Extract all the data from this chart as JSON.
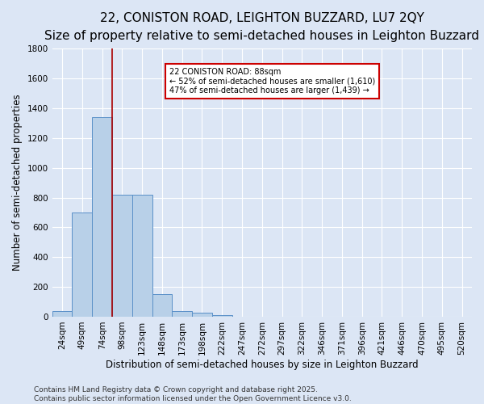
{
  "title": "22, CONISTON ROAD, LEIGHTON BUZZARD, LU7 2QY",
  "subtitle": "Size of property relative to semi-detached houses in Leighton Buzzard",
  "xlabel": "Distribution of semi-detached houses by size in Leighton Buzzard",
  "ylabel": "Number of semi-detached properties",
  "footnote": "Contains HM Land Registry data © Crown copyright and database right 2025.\nContains public sector information licensed under the Open Government Licence v3.0.",
  "categories": [
    "24sqm",
    "49sqm",
    "74sqm",
    "98sqm",
    "123sqm",
    "148sqm",
    "173sqm",
    "198sqm",
    "222sqm",
    "247sqm",
    "272sqm",
    "297sqm",
    "322sqm",
    "346sqm",
    "371sqm",
    "396sqm",
    "421sqm",
    "446sqm",
    "470sqm",
    "495sqm",
    "520sqm"
  ],
  "values": [
    40,
    700,
    1340,
    820,
    820,
    150,
    40,
    25,
    10,
    0,
    0,
    0,
    0,
    0,
    0,
    0,
    0,
    0,
    0,
    0,
    0
  ],
  "bar_color": "#b8d0e8",
  "bar_edge_color": "#5a90c8",
  "vline_color": "#aa0000",
  "annotation_text": "22 CONISTON ROAD: 88sqm\n← 52% of semi-detached houses are smaller (1,610)\n47% of semi-detached houses are larger (1,439) →",
  "annotation_box_color": "#ffffff",
  "annotation_box_edge": "#cc0000",
  "ylim": [
    0,
    1800
  ],
  "yticks": [
    0,
    200,
    400,
    600,
    800,
    1000,
    1200,
    1400,
    1600,
    1800
  ],
  "background_color": "#dce6f5",
  "grid_color": "#ffffff",
  "title_fontsize": 11,
  "subtitle_fontsize": 9.5,
  "axis_label_fontsize": 8.5,
  "tick_fontsize": 7.5,
  "annotation_fontsize": 7,
  "footnote_fontsize": 6.5
}
